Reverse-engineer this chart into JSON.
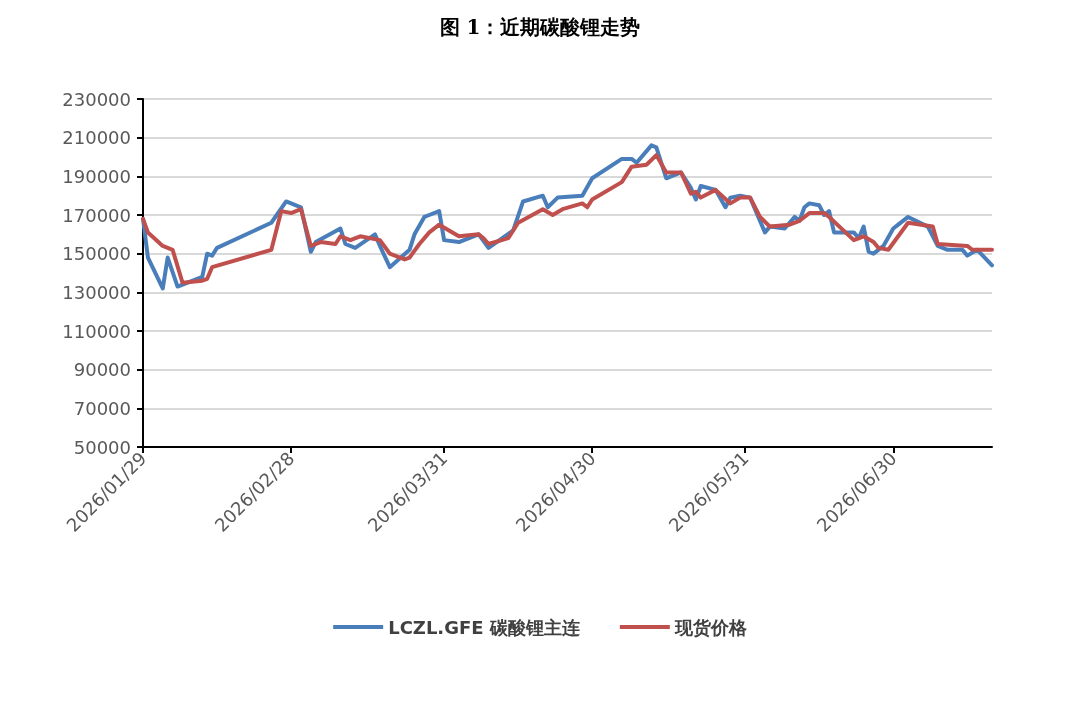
{
  "chart_data": {
    "type": "line",
    "title": "图 1：近期碳酸锂走势",
    "xlim": [
      "2026-01-29",
      "2026-07-20"
    ],
    "xticks": [
      {
        "value": "2026-01-29",
        "label": "2026/01/29"
      },
      {
        "value": "2026-02-28",
        "label": "2026/02/28"
      },
      {
        "value": "2026-03-31",
        "label": "2026/03/31"
      },
      {
        "value": "2026-04-30",
        "label": "2026/04/30"
      },
      {
        "value": "2026-05-31",
        "label": "2026/05/31"
      },
      {
        "value": "2026-06-30",
        "label": "2026/06/30"
      }
    ],
    "ylim": [
      50000,
      230000
    ],
    "yticks": [
      50000,
      70000,
      90000,
      110000,
      130000,
      150000,
      170000,
      190000,
      210000,
      230000
    ],
    "grid": "y",
    "legend": "bottom",
    "marker": "none",
    "line_style": "solid",
    "series": [
      {
        "name": "LCZL.GFE 碳酸锂主连",
        "color": "#4a7ebb",
        "x": [
          "2026-01-29",
          "2026-01-30",
          "2026-02-02",
          "2026-02-03",
          "2026-02-05",
          "2026-02-10",
          "2026-02-11",
          "2026-02-12",
          "2026-02-13",
          "2026-02-24",
          "2026-02-27",
          "2026-03-02",
          "2026-03-04",
          "2026-03-05",
          "2026-03-10",
          "2026-03-11",
          "2026-03-13",
          "2026-03-17",
          "2026-03-18",
          "2026-03-20",
          "2026-03-24",
          "2026-03-25",
          "2026-03-27",
          "2026-03-28",
          "2026-03-30",
          "2026-03-31",
          "2026-04-03",
          "2026-04-07",
          "2026-04-09",
          "2026-04-14",
          "2026-04-16",
          "2026-04-20",
          "2026-04-21",
          "2026-04-23",
          "2026-04-28",
          "2026-04-30",
          "2026-05-06",
          "2026-05-08",
          "2026-05-09",
          "2026-05-12",
          "2026-05-13",
          "2026-05-15",
          "2026-05-18",
          "2026-05-20",
          "2026-05-21",
          "2026-05-22",
          "2026-05-25",
          "2026-05-27",
          "2026-05-28",
          "2026-05-30",
          "2026-06-01",
          "2026-06-04",
          "2026-06-05",
          "2026-06-08",
          "2026-06-10",
          "2026-06-11",
          "2026-06-12",
          "2026-06-13",
          "2026-06-15",
          "2026-06-16",
          "2026-06-17",
          "2026-06-18",
          "2026-06-22",
          "2026-06-23",
          "2026-06-24",
          "2026-06-25",
          "2026-06-26",
          "2026-06-28",
          "2026-06-30",
          "2026-07-01",
          "2026-07-03",
          "2026-07-07",
          "2026-07-09",
          "2026-07-11",
          "2026-07-14",
          "2026-07-15",
          "2026-07-17",
          "2026-07-20"
        ],
        "values": [
          168000,
          148000,
          132000,
          148000,
          133000,
          138000,
          150000,
          149000,
          153000,
          166000,
          177000,
          174000,
          151000,
          156000,
          163000,
          155000,
          153000,
          160000,
          154000,
          143000,
          152000,
          160000,
          169000,
          170000,
          172000,
          157000,
          156000,
          160000,
          153000,
          162000,
          177000,
          180000,
          174000,
          179000,
          180000,
          189000,
          199000,
          199000,
          197000,
          206000,
          205000,
          189000,
          192000,
          184000,
          178000,
          185000,
          183000,
          174000,
          179000,
          180000,
          179000,
          161000,
          164000,
          163000,
          169000,
          167000,
          174000,
          176000,
          175000,
          170000,
          172000,
          161000,
          161000,
          158000,
          164000,
          151000,
          150000,
          154000,
          163000,
          165000,
          169000,
          164000,
          154000,
          152000,
          152000,
          149000,
          152000,
          144000
        ]
      },
      {
        "name": "现货价格",
        "color": "#c0504d",
        "x": [
          "2026-01-29",
          "2026-01-30",
          "2026-02-02",
          "2026-02-03",
          "2026-02-04",
          "2026-02-06",
          "2026-02-10",
          "2026-02-11",
          "2026-02-12",
          "2026-02-24",
          "2026-02-26",
          "2026-02-28",
          "2026-03-02",
          "2026-03-04",
          "2026-03-06",
          "2026-03-09",
          "2026-03-10",
          "2026-03-12",
          "2026-03-14",
          "2026-03-18",
          "2026-03-20",
          "2026-03-23",
          "2026-03-24",
          "2026-03-26",
          "2026-03-28",
          "2026-03-30",
          "2026-04-03",
          "2026-04-07",
          "2026-04-08",
          "2026-04-09",
          "2026-04-13",
          "2026-04-15",
          "2026-04-20",
          "2026-04-22",
          "2026-04-24",
          "2026-04-28",
          "2026-04-29",
          "2026-04-30",
          "2026-05-06",
          "2026-05-08",
          "2026-05-11",
          "2026-05-13",
          "2026-05-15",
          "2026-05-18",
          "2026-05-20",
          "2026-05-21",
          "2026-05-22",
          "2026-05-25",
          "2026-05-28",
          "2026-05-30",
          "2026-06-01",
          "2026-06-03",
          "2026-06-05",
          "2026-06-09",
          "2026-06-11",
          "2026-06-13",
          "2026-06-16",
          "2026-06-17",
          "2026-06-22",
          "2026-06-24",
          "2026-06-26",
          "2026-06-27",
          "2026-06-29",
          "2026-07-03",
          "2026-07-08",
          "2026-07-09",
          "2026-07-15",
          "2026-07-16",
          "2026-07-20"
        ],
        "values": [
          168000,
          161000,
          154000,
          153000,
          152000,
          135000,
          136000,
          137000,
          143000,
          152000,
          172000,
          171000,
          173000,
          154000,
          156000,
          155000,
          159000,
          157000,
          159000,
          157000,
          150000,
          147000,
          148000,
          155000,
          161000,
          165000,
          159000,
          160000,
          158000,
          155000,
          158000,
          166000,
          173000,
          170000,
          173000,
          176000,
          174000,
          178000,
          187000,
          195000,
          196000,
          201000,
          192000,
          192000,
          181000,
          182000,
          179000,
          183000,
          176000,
          179000,
          179000,
          169000,
          164000,
          165000,
          167000,
          171000,
          171000,
          169000,
          157000,
          159000,
          156000,
          153000,
          152000,
          166000,
          164000,
          155000,
          154000,
          152000,
          152000
        ]
      }
    ]
  }
}
